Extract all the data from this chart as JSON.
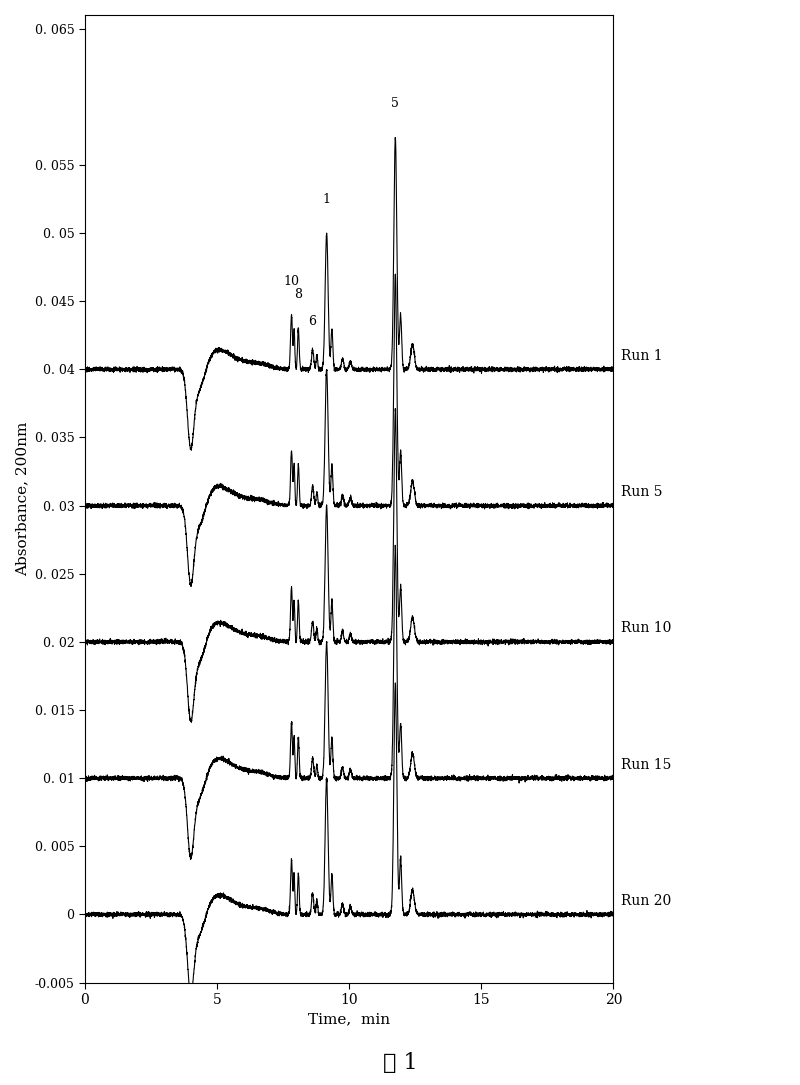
{
  "title": "",
  "xlabel": "Time,  min",
  "ylabel": "Absorbance, 200nm",
  "xlim": [
    0,
    20
  ],
  "ylim": [
    -0.005,
    0.066
  ],
  "yticks": [
    -0.005,
    0,
    0.005,
    0.01,
    0.015,
    0.02,
    0.025,
    0.03,
    0.035,
    0.04,
    0.045,
    0.05,
    0.055,
    0.065
  ],
  "xticks": [
    0,
    5,
    10,
    15,
    20
  ],
  "runs": [
    "Run 1",
    "Run 5",
    "Run 10",
    "Run 15",
    "Run 20"
  ],
  "offsets": [
    0.04,
    0.03,
    0.02,
    0.01,
    0.0
  ],
  "caption": "图 1",
  "background_color": "#ffffff",
  "line_color": "#000000",
  "figsize": [
    8.0,
    10.85
  ],
  "dpi": 100
}
